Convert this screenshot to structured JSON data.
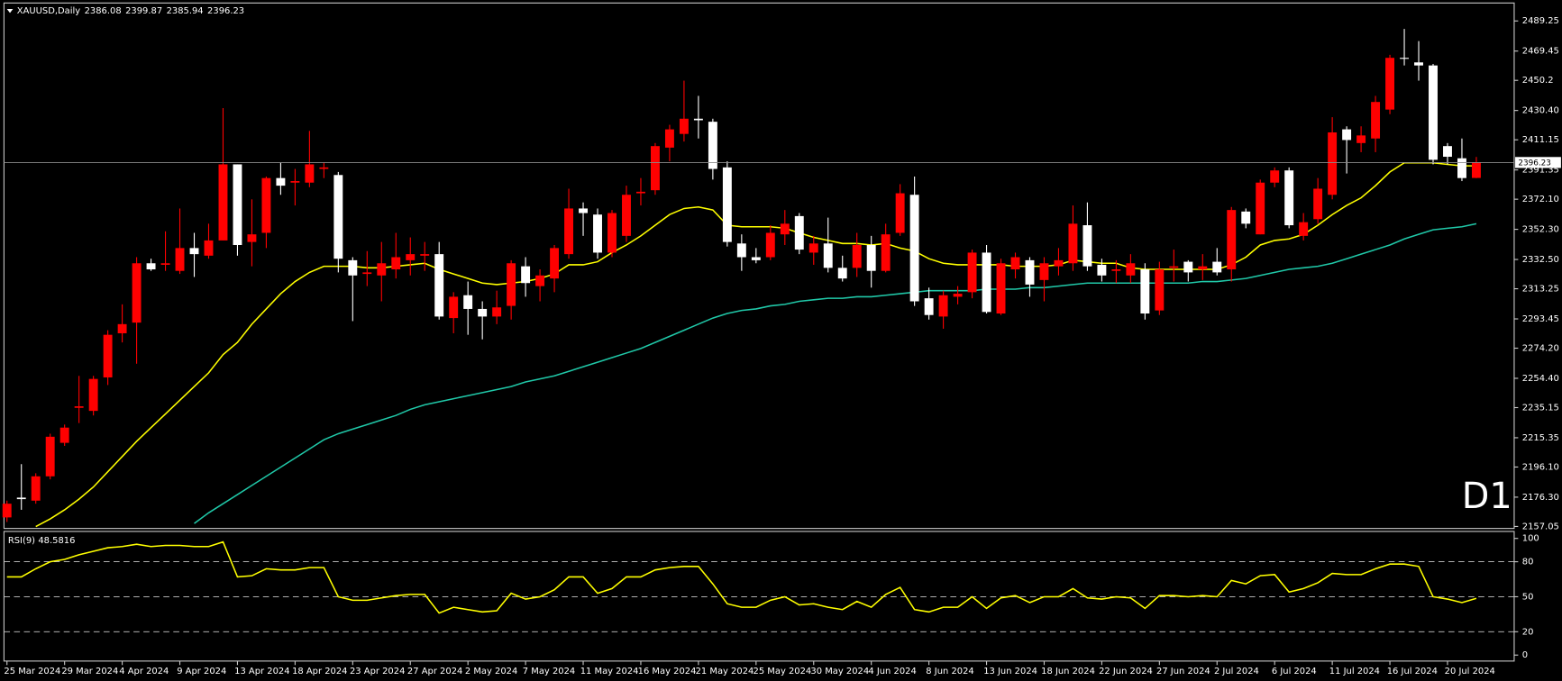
{
  "chart_data": [
    {
      "type": "candlestick",
      "title": "XAUUSD,Daily",
      "annotation": "D1",
      "annotation_color": "#ff0000",
      "background": "#000000",
      "bull_color": "#ff0000",
      "bear_color": "#ffffff",
      "categories": [
        "25 Mar 2024",
        null,
        null,
        null,
        "29 Mar 2024",
        null,
        null,
        null,
        "4 Apr 2024",
        null,
        null,
        null,
        "9 Apr 2024",
        null,
        null,
        null,
        "13 Apr 2024",
        null,
        null,
        null,
        "18 Apr 2024",
        null,
        null,
        null,
        "23 Apr 2024",
        null,
        null,
        null,
        "27 Apr 2024",
        null,
        null,
        null,
        "2 May 2024",
        null,
        null,
        null,
        "7 May 2024",
        null,
        null,
        null,
        "11 May 2024",
        null,
        null,
        null,
        "16 May 2024",
        null,
        null,
        null,
        "21 May 2024",
        null,
        null,
        null,
        "25 May 2024",
        null,
        null,
        null,
        "30 May 2024",
        null,
        null,
        null,
        "4 Jun 2024",
        null,
        null,
        null,
        "8 Jun 2024",
        null,
        null,
        null,
        "13 Jun 2024",
        null,
        null,
        null,
        "18 Jun 2024",
        null,
        null,
        null,
        "22 Jun 2024",
        null,
        null,
        null,
        "27 Jun 2024",
        null,
        null,
        null,
        "2 Jul 2024",
        null,
        null,
        null,
        "6 Jul 2024",
        null,
        null,
        null,
        "11 Jul 2024",
        null,
        null,
        null,
        "16 Jul 2024",
        null,
        null,
        null,
        "20 Jul 2024",
        null,
        null
      ],
      "open": [
        2163,
        2176,
        2174,
        2190,
        2212,
        2235,
        2233,
        2255,
        2284,
        2291,
        2330,
        2329,
        2325,
        2340,
        2335,
        2345,
        2395,
        2344,
        2350,
        2386,
        2383,
        2383,
        2392,
        2388,
        2332,
        2323,
        2322,
        2326,
        2332,
        2335,
        2336,
        2294,
        2309,
        2300,
        2295,
        2302,
        2328,
        2315,
        2320,
        2336,
        2366,
        2362,
        2337,
        2348,
        2376,
        2378,
        2406,
        2415,
        2425,
        2423,
        2393,
        2343,
        2334,
        2334,
        2349,
        2361,
        2337,
        2343,
        2327,
        2327,
        2342,
        2325,
        2350,
        2375,
        2307,
        2295,
        2308,
        2311,
        2337,
        2297,
        2326,
        2332,
        2319,
        2328,
        2330,
        2355,
        2329,
        2325,
        2322,
        2326,
        2299,
        2327,
        2331,
        2326,
        2331,
        2326,
        2364,
        2349,
        2383,
        2391,
        2348,
        2359,
        2375,
        2418,
        2409,
        2412,
        2431,
        2465,
        2462,
        2460,
        2407,
        2399,
        2386.08
      ],
      "high": [
        2174,
        2198,
        2192,
        2218,
        2224,
        2256,
        2256,
        2286,
        2303,
        2334,
        2333,
        2351,
        2366,
        2350,
        2356,
        2432,
        2395,
        2372,
        2387,
        2396,
        2392,
        2417,
        2396,
        2390,
        2334,
        2338,
        2344,
        2350,
        2347,
        2344,
        2344,
        2311,
        2318,
        2305,
        2312,
        2332,
        2334,
        2326,
        2342,
        2379,
        2370,
        2366,
        2365,
        2381,
        2386,
        2409,
        2421,
        2450,
        2440,
        2425,
        2397,
        2349,
        2340,
        2355,
        2365,
        2363,
        2348,
        2360,
        2335,
        2350,
        2348,
        2356,
        2382,
        2387,
        2314,
        2312,
        2315,
        2339,
        2342,
        2333,
        2337,
        2334,
        2334,
        2340,
        2368,
        2370,
        2333,
        2332,
        2336,
        2330,
        2331,
        2339,
        2332,
        2336,
        2340,
        2367,
        2366,
        2385,
        2393,
        2393,
        2363,
        2386,
        2426,
        2420,
        2420,
        2440,
        2467,
        2484,
        2476,
        2461,
        2409,
        2412,
        2399.87
      ],
      "low": [
        2160,
        2168,
        2172,
        2188,
        2210,
        2225,
        2230,
        2250,
        2278,
        2264,
        2325,
        2325,
        2323,
        2321,
        2333,
        2345,
        2335,
        2328,
        2340,
        2375,
        2368,
        2380,
        2386,
        2324,
        2292,
        2315,
        2305,
        2320,
        2322,
        2325,
        2293,
        2284,
        2283,
        2280,
        2290,
        2293,
        2308,
        2305,
        2311,
        2333,
        2348,
        2333,
        2334,
        2344,
        2368,
        2375,
        2397,
        2410,
        2412,
        2385,
        2341,
        2325,
        2330,
        2332,
        2342,
        2336,
        2329,
        2324,
        2318,
        2321,
        2314,
        2324,
        2348,
        2302,
        2293,
        2287,
        2303,
        2307,
        2297,
        2296,
        2320,
        2308,
        2305,
        2322,
        2325,
        2325,
        2318,
        2317,
        2317,
        2293,
        2296,
        2318,
        2318,
        2319,
        2322,
        2318,
        2353,
        2349,
        2380,
        2353,
        2345,
        2356,
        2372,
        2389,
        2403,
        2403,
        2428,
        2460,
        2450,
        2395,
        2395,
        2384,
        2385.94
      ],
      "close": [
        2172,
        2175,
        2190,
        2216,
        2222,
        2236,
        2254,
        2283,
        2290,
        2330,
        2326,
        2330,
        2340,
        2336,
        2345,
        2395,
        2342,
        2349,
        2386,
        2381,
        2384,
        2395,
        2393,
        2333,
        2322,
        2324,
        2330,
        2334,
        2336,
        2336,
        2295,
        2308,
        2300,
        2295,
        2301,
        2330,
        2317,
        2322,
        2340,
        2366,
        2363,
        2337,
        2363,
        2375,
        2377,
        2407,
        2418,
        2425,
        2424,
        2392,
        2344,
        2334,
        2332,
        2350,
        2356,
        2339,
        2343,
        2327,
        2320,
        2342,
        2325,
        2349,
        2376,
        2305,
        2296,
        2309,
        2310,
        2337,
        2298,
        2330,
        2334,
        2316,
        2330,
        2332,
        2356,
        2328,
        2322,
        2326,
        2330,
        2297,
        2326,
        2328,
        2324,
        2328,
        2324,
        2365,
        2356,
        2383,
        2391,
        2355,
        2357,
        2379,
        2416,
        2411,
        2414,
        2436,
        2465,
        2465,
        2460,
        2398,
        2400,
        2386,
        2396.23
      ],
      "overlays": [
        {
          "color": "#ffff00",
          "values": [
            null,
            null,
            2157,
            2162,
            2168,
            2175,
            2183,
            2193,
            2203,
            2213,
            2222,
            2231,
            2240,
            2249,
            2258,
            2270,
            2278,
            2290,
            2300,
            2310,
            2318,
            2324,
            2328,
            2328,
            2328,
            2327,
            2327,
            2328,
            2329,
            2330,
            2326,
            2323,
            2320,
            2317,
            2316,
            2317,
            2318,
            2320,
            2323,
            2329,
            2329,
            2331,
            2337,
            2342,
            2348,
            2355,
            2362,
            2366,
            2367,
            2365,
            2355,
            2354,
            2354,
            2354,
            2353,
            2350,
            2347,
            2345,
            2343,
            2343,
            2342,
            2343,
            2340,
            2338,
            2333,
            2330,
            2329,
            2329,
            2329,
            2329,
            2328,
            2328,
            2328,
            2329,
            2332,
            2331,
            2330,
            2330,
            2327,
            2326,
            2326,
            2326,
            2326,
            2326,
            2326,
            2329,
            2334,
            2342,
            2345,
            2346,
            2349,
            2355,
            2362,
            2368,
            2373,
            2381,
            2390,
            2396,
            2396,
            2396,
            2395,
            2394,
            2394
          ]
        },
        {
          "color": "#20c8a8",
          "values": [
            null,
            null,
            null,
            null,
            null,
            null,
            null,
            null,
            null,
            null,
            null,
            null,
            null,
            2159,
            2166,
            2172,
            2178,
            2184,
            2190,
            2196,
            2202,
            2208,
            2214,
            2218,
            2221,
            2224,
            2227,
            2230,
            2234,
            2237,
            2239,
            2241,
            2243,
            2245,
            2247,
            2249,
            2252,
            2254,
            2256,
            2259,
            2262,
            2265,
            2268,
            2271,
            2274,
            2278,
            2282,
            2286,
            2290,
            2294,
            2297,
            2299,
            2300,
            2302,
            2303,
            2305,
            2306,
            2307,
            2307,
            2308,
            2308,
            2309,
            2310,
            2311,
            2312,
            2312,
            2312,
            2312,
            2313,
            2313,
            2313,
            2314,
            2314,
            2315,
            2316,
            2317,
            2317,
            2317,
            2317,
            2317,
            2317,
            2317,
            2317,
            2318,
            2318,
            2319,
            2320,
            2322,
            2324,
            2326,
            2327,
            2328,
            2330,
            2333,
            2336,
            2339,
            2342,
            2346,
            2349,
            2352,
            2353,
            2354,
            2356
          ]
        }
      ],
      "ylim": [
        2157.05,
        2489.25
      ],
      "yticks": [
        2157.05,
        {
          "value": 2176.3,
          "label": "2176.30"
        },
        {
          "value": 2196.1,
          "label": "2196.10"
        },
        2215.35,
        2235.15,
        {
          "value": 2254.4,
          "label": "2254.40"
        },
        {
          "value": 2274.2,
          "label": "2274.20"
        },
        2293.45,
        2313.25,
        {
          "value": 2332.5,
          "label": "2332.50"
        },
        {
          "value": 2352.3,
          "label": "2352.30"
        },
        {
          "value": 2372.1,
          "label": "2372.10"
        },
        2391.35,
        2411.15,
        {
          "value": 2430.4,
          "label": "2430.40"
        },
        2450.2,
        2469.45,
        2489.25
      ],
      "price_line_color": "#8c8c8c"
    },
    {
      "type": "line",
      "name": "RSI(9)",
      "color": "#ffff00",
      "values": [
        67,
        67,
        74,
        80,
        82,
        86,
        89,
        92,
        93,
        95,
        93,
        94,
        94,
        93,
        93,
        97,
        67,
        68,
        74,
        73,
        73,
        75,
        75,
        50,
        47,
        47,
        49,
        51,
        52,
        52,
        36,
        41,
        39,
        37,
        38,
        53,
        48,
        50,
        56,
        67,
        67,
        53,
        57,
        67,
        67,
        73,
        75,
        76,
        76,
        61,
        44,
        41,
        41,
        47,
        50,
        43,
        44,
        41,
        39,
        46,
        41,
        52,
        58,
        39,
        37,
        41,
        41,
        50,
        40,
        49,
        51,
        45,
        50,
        50,
        57,
        49,
        48,
        50,
        49,
        40,
        51,
        51,
        50,
        51,
        50,
        64,
        61,
        68,
        69,
        54,
        57,
        62,
        70,
        69,
        69,
        74,
        78,
        78,
        76,
        50,
        48,
        45,
        48.5816
      ],
      "ylim": [
        0,
        100
      ],
      "yticks": [
        0,
        20,
        50,
        80,
        100
      ],
      "levels": [
        20,
        50,
        80
      ],
      "level_style": "dashed"
    }
  ]
}
